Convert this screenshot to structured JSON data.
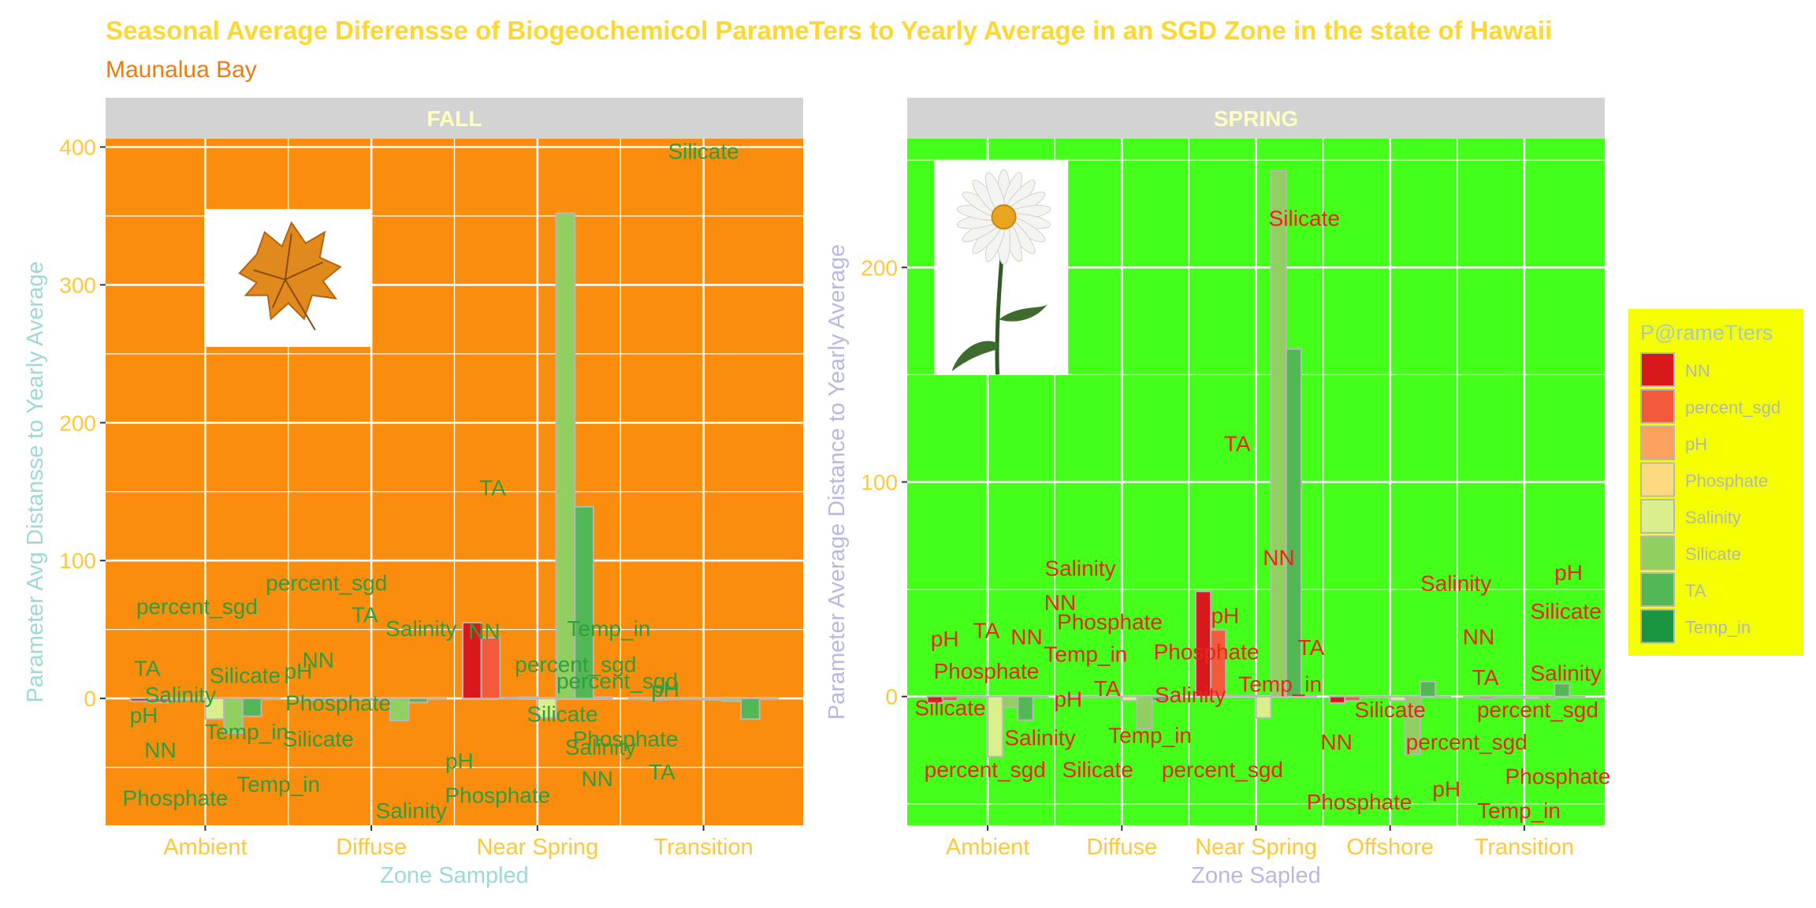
{
  "title": "Seasonal Average Diferensse of Biogeochemicol ParameTers to Yearly Average in an SGD Zone in the state of Hawaii",
  "subtitle": "Maunalua Bay",
  "colors": {
    "title": "#FFD72E",
    "subtitle": "#F07A10",
    "axis_text": "#FFC83A",
    "strip_bg": "#D3D3D3",
    "strip_text": "#FFFFC0",
    "fall_bg": "#FA8C0E",
    "spring_bg": "#44FF19",
    "fall_label": "#2E9E3E",
    "spring_label": "#E8261E",
    "bar_outline": "#B7B7B7",
    "legend_bg": "#F5FF00",
    "legend_title": "#A8C8C8",
    "legend_text": "#B0B8B0"
  },
  "legend": {
    "title": "P@rameTters",
    "position": "right",
    "items": [
      {
        "name": "NN",
        "color": "#D7191C"
      },
      {
        "name": "percent_sgd",
        "color": "#F35A3A"
      },
      {
        "name": "pH",
        "color": "#FCA25E"
      },
      {
        "name": "Phosphate",
        "color": "#FEDA7F"
      },
      {
        "name": "Salinity",
        "color": "#D9EF8B"
      },
      {
        "name": "Silicate",
        "color": "#91CF60"
      },
      {
        "name": "TA",
        "color": "#52B755"
      },
      {
        "name": "Temp_in",
        "color": "#1A9641"
      }
    ]
  },
  "chart_data": [
    {
      "type": "bar",
      "panel": "FALL",
      "xlabel": "Zone Sampled",
      "ylabel": "Parameter Avg Distansse to Yearly Average",
      "categories": [
        "Ambient",
        "Diffuse",
        "Near Spring",
        "Transition"
      ],
      "ylim": [
        -92,
        406
      ],
      "yticks": [
        0,
        100,
        200,
        300,
        400
      ],
      "grid": true,
      "image": "autumn-leaf",
      "series": [
        {
          "name": "NN",
          "values": [
            -2,
            -1,
            55,
            -0.5
          ]
        },
        {
          "name": "percent_sgd",
          "values": [
            -3,
            -1.5,
            44,
            -1
          ]
        },
        {
          "name": "pH",
          "values": [
            -1,
            -1,
            0.5,
            -0.5
          ]
        },
        {
          "name": "Phosphate",
          "values": [
            -0.5,
            -0.5,
            1,
            -0.5
          ]
        },
        {
          "name": "Salinity",
          "values": [
            -15,
            -1,
            -14,
            -1
          ]
        },
        {
          "name": "Silicate",
          "values": [
            -25,
            -16,
            352,
            -2
          ]
        },
        {
          "name": "TA",
          "values": [
            -13,
            -3,
            139,
            -15
          ]
        },
        {
          "name": "Temp_in",
          "values": [
            -0.5,
            -0.5,
            1,
            -0.5
          ]
        }
      ],
      "annotations": [
        {
          "text": "Silicate",
          "x": 4.0,
          "y": 397
        },
        {
          "text": "TA",
          "x": 2.73,
          "y": 153
        },
        {
          "text": "percent_sgd",
          "x": 1.73,
          "y": 84
        },
        {
          "text": "percent_sgd",
          "x": 0.95,
          "y": 67
        },
        {
          "text": "TA",
          "x": 1.96,
          "y": 61
        },
        {
          "text": "Salinity",
          "x": 2.3,
          "y": 51
        },
        {
          "text": "NN",
          "x": 2.68,
          "y": 49
        },
        {
          "text": "Temp_in",
          "x": 3.43,
          "y": 51
        },
        {
          "text": "NN",
          "x": 1.68,
          "y": 28
        },
        {
          "text": "percent_sgd",
          "x": 3.23,
          "y": 25
        },
        {
          "text": "TA",
          "x": 0.65,
          "y": 22
        },
        {
          "text": "Silicate",
          "x": 1.24,
          "y": 17
        },
        {
          "text": "pH",
          "x": 1.56,
          "y": 20
        },
        {
          "text": "percent_sgd",
          "x": 3.48,
          "y": 13
        },
        {
          "text": "Salinity",
          "x": 0.85,
          "y": 3
        },
        {
          "text": "Phosphate",
          "x": 1.8,
          "y": -3
        },
        {
          "text": "pH",
          "x": 3.77,
          "y": 7
        },
        {
          "text": "pH",
          "x": 0.63,
          "y": -12
        },
        {
          "text": "Silicate",
          "x": 3.15,
          "y": -11
        },
        {
          "text": "Temp_in",
          "x": 1.25,
          "y": -24
        },
        {
          "text": "Silicate",
          "x": 1.68,
          "y": -29
        },
        {
          "text": "Phosphate",
          "x": 3.53,
          "y": -29
        },
        {
          "text": "NN",
          "x": 0.73,
          "y": -37
        },
        {
          "text": "Salinity",
          "x": 3.38,
          "y": -35
        },
        {
          "text": "TA",
          "x": 3.75,
          "y": -53
        },
        {
          "text": "pH",
          "x": 2.53,
          "y": -45
        },
        {
          "text": "NN",
          "x": 3.36,
          "y": -58
        },
        {
          "text": "Temp_in",
          "x": 1.44,
          "y": -62
        },
        {
          "text": "Phosphate",
          "x": 0.82,
          "y": -72
        },
        {
          "text": "Phosphate",
          "x": 2.76,
          "y": -70
        },
        {
          "text": "Salinity",
          "x": 2.24,
          "y": -81
        }
      ]
    },
    {
      "type": "bar",
      "panel": "SPRING",
      "xlabel": "Zone Sapled",
      "ylabel": "Parameter Average Distance to Yearly Average",
      "categories": [
        "Ambient",
        "Diffuse",
        "Near Spring",
        "Offshore",
        "Transition"
      ],
      "ylim": [
        -60,
        260
      ],
      "yticks": [
        0,
        100,
        200
      ],
      "grid": true,
      "image": "daisy-flower",
      "series": [
        {
          "name": "NN",
          "values": [
            -3,
            -0.5,
            49,
            -3,
            -0.5
          ]
        },
        {
          "name": "percent_sgd",
          "values": [
            -2,
            -0.5,
            31,
            -2,
            -1
          ]
        },
        {
          "name": "pH",
          "values": [
            -0.5,
            -0.3,
            0.5,
            -0.3,
            -0.3
          ]
        },
        {
          "name": "Phosphate",
          "values": [
            -0.5,
            -0.3,
            0.5,
            -0.3,
            -0.3
          ]
        },
        {
          "name": "Salinity",
          "values": [
            -28,
            -2,
            -10,
            -2,
            -1
          ]
        },
        {
          "name": "Silicate",
          "values": [
            -5,
            -15,
            245,
            -27,
            -1
          ]
        },
        {
          "name": "TA",
          "values": [
            -11,
            -2,
            162,
            7,
            6
          ]
        },
        {
          "name": "Temp_in",
          "values": [
            -0.3,
            -0.3,
            0.5,
            -0.3,
            -0.3
          ]
        }
      ],
      "annotations": [
        {
          "text": "Silicate",
          "x": 3.36,
          "y": 223
        },
        {
          "text": "TA",
          "x": 2.86,
          "y": 118
        },
        {
          "text": "NN",
          "x": 3.17,
          "y": 65
        },
        {
          "text": "Salinity",
          "x": 1.69,
          "y": 60
        },
        {
          "text": "Salinity",
          "x": 4.49,
          "y": 53
        },
        {
          "text": "pH",
          "x": 5.33,
          "y": 58
        },
        {
          "text": "NN",
          "x": 1.54,
          "y": 44
        },
        {
          "text": "Silicate",
          "x": 5.31,
          "y": 40
        },
        {
          "text": "TA",
          "x": 0.99,
          "y": 31
        },
        {
          "text": "Phosphate",
          "x": 1.91,
          "y": 35
        },
        {
          "text": "pH",
          "x": 2.77,
          "y": 38
        },
        {
          "text": "NN",
          "x": 1.29,
          "y": 28
        },
        {
          "text": "pH",
          "x": 0.68,
          "y": 27
        },
        {
          "text": "NN",
          "x": 4.66,
          "y": 28
        },
        {
          "text": "Temp_in",
          "x": 1.73,
          "y": 20
        },
        {
          "text": "Phosphate",
          "x": 2.63,
          "y": 21
        },
        {
          "text": "TA",
          "x": 3.41,
          "y": 23
        },
        {
          "text": "Phosphate",
          "x": 0.99,
          "y": 12
        },
        {
          "text": "TA",
          "x": 1.89,
          "y": 4
        },
        {
          "text": "Temp_in",
          "x": 3.18,
          "y": 6
        },
        {
          "text": "TA",
          "x": 4.71,
          "y": 9
        },
        {
          "text": "Salinity",
          "x": 5.31,
          "y": 11
        },
        {
          "text": "pH",
          "x": 1.6,
          "y": -1
        },
        {
          "text": "Salinity",
          "x": 2.51,
          "y": 1
        },
        {
          "text": "Silicate",
          "x": 0.72,
          "y": -5
        },
        {
          "text": "Silicate",
          "x": 4.0,
          "y": -6
        },
        {
          "text": "percent_sgd",
          "x": 5.1,
          "y": -6
        },
        {
          "text": "Temp_in",
          "x": 2.21,
          "y": -18
        },
        {
          "text": "Salinity",
          "x": 1.39,
          "y": -19
        },
        {
          "text": "NN",
          "x": 3.6,
          "y": -21
        },
        {
          "text": "percent_sgd",
          "x": 4.57,
          "y": -21
        },
        {
          "text": "percent_sgd",
          "x": 0.98,
          "y": -34
        },
        {
          "text": "Silicate",
          "x": 1.82,
          "y": -34
        },
        {
          "text": "percent_sgd",
          "x": 2.75,
          "y": -34
        },
        {
          "text": "Phosphate",
          "x": 5.25,
          "y": -37
        },
        {
          "text": "pH",
          "x": 4.42,
          "y": -43
        },
        {
          "text": "Phosphate",
          "x": 3.77,
          "y": -49
        },
        {
          "text": "Temp_in",
          "x": 4.96,
          "y": -53
        }
      ]
    }
  ]
}
